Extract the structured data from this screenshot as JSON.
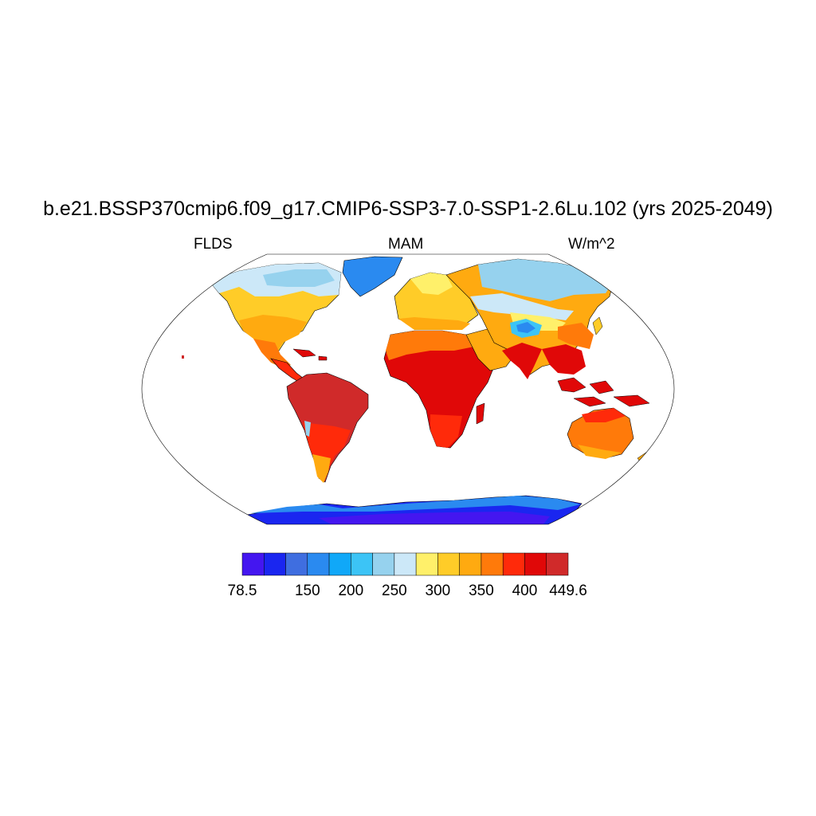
{
  "header": {
    "title": "b.e21.BSSP370cmip6.f09_g17.CMIP6-SSP3-7.0-SSP1-2.6Lu.102 (yrs 2025-2049)",
    "left": "FLDS",
    "center": "MAM",
    "right": "W/m^2"
  },
  "colorbar": {
    "colors": [
      "#4416f0",
      "#1a26f0",
      "#3f6ee0",
      "#2a8af0",
      "#10a8f8",
      "#3cc4f6",
      "#96d2ee",
      "#cce8f8",
      "#fff06a",
      "#ffcc28",
      "#ffaa10",
      "#ff7a0a",
      "#ff2a0a",
      "#e00808",
      "#d02a2a"
    ],
    "labels": [
      "78.5",
      "150",
      "200",
      "250",
      "300",
      "350",
      "400",
      "449.6"
    ]
  },
  "map": {
    "projection": "robinson",
    "regions": [
      {
        "name": "antarctica",
        "color": "#1a26f0"
      },
      {
        "name": "greenland",
        "color": "#2a8af0"
      },
      {
        "name": "canada-arctic",
        "color": "#96d2ee"
      },
      {
        "name": "siberia",
        "color": "#96d2ee"
      },
      {
        "name": "tibet",
        "color": "#3cc4f6"
      },
      {
        "name": "north-america",
        "color": "#ffcc28"
      },
      {
        "name": "europe",
        "color": "#ffcc28"
      },
      {
        "name": "asia-mid",
        "color": "#ffaa10"
      },
      {
        "name": "africa",
        "color": "#e00808"
      },
      {
        "name": "south-america",
        "color": "#d02a2a"
      },
      {
        "name": "australia",
        "color": "#ff7a0a"
      },
      {
        "name": "maritime-continent",
        "color": "#e00808"
      }
    ]
  }
}
